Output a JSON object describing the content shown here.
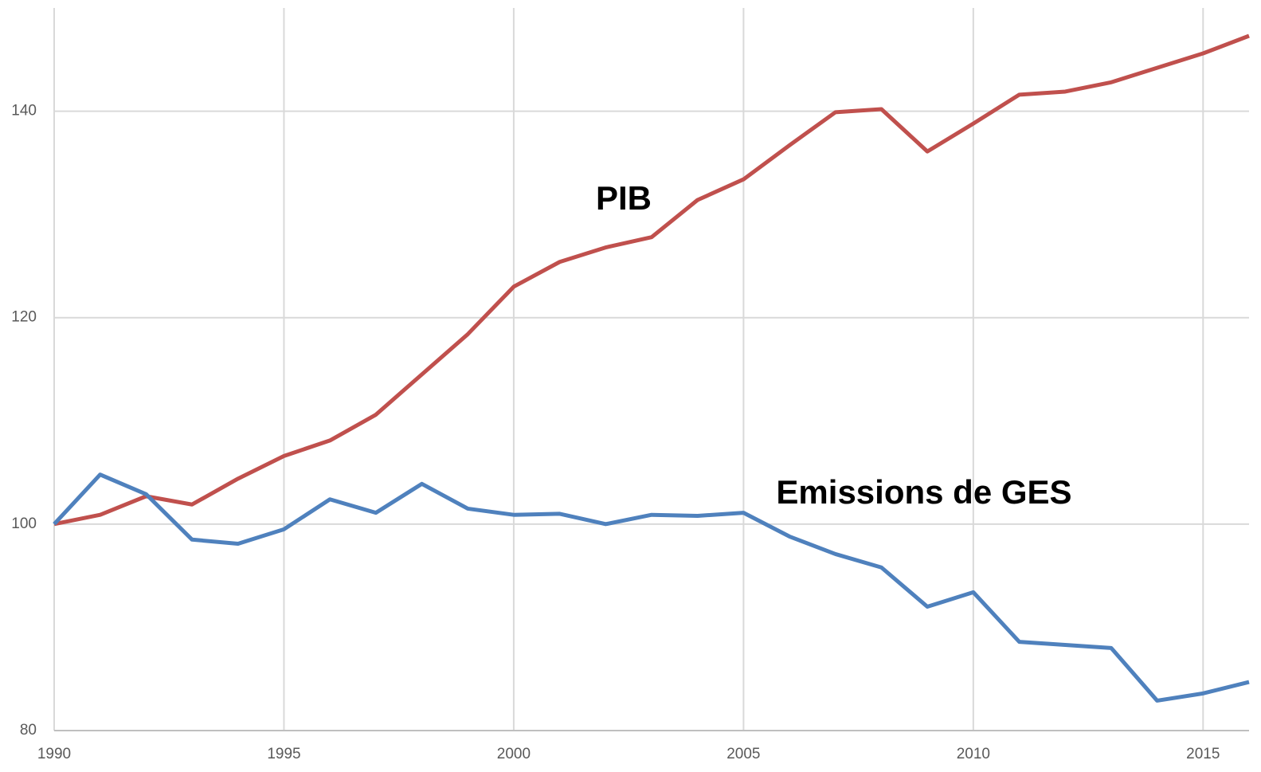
{
  "chart_data": {
    "type": "line",
    "x": [
      1990,
      1991,
      1992,
      1993,
      1994,
      1995,
      1996,
      1997,
      1998,
      1999,
      2000,
      2001,
      2002,
      2003,
      2004,
      2005,
      2006,
      2007,
      2008,
      2009,
      2010,
      2011,
      2012,
      2013,
      2014,
      2015,
      2016
    ],
    "series": [
      {
        "name": "PIB",
        "color": "#c0504d",
        "values": [
          100,
          100.9,
          102.7,
          101.9,
          104.4,
          106.6,
          108.1,
          110.6,
          114.5,
          118.4,
          123.0,
          125.4,
          126.8,
          127.8,
          131.4,
          133.4,
          136.7,
          139.9,
          140.2,
          136.1,
          138.8,
          141.6,
          141.9,
          142.8,
          144.2,
          145.6,
          147.3
        ]
      },
      {
        "name": "Emissions de GES",
        "color": "#4f81bd",
        "values": [
          100,
          104.8,
          102.9,
          98.5,
          98.1,
          99.5,
          102.4,
          101.1,
          103.9,
          101.5,
          100.9,
          101.0,
          100.0,
          100.9,
          100.8,
          101.1,
          98.8,
          97.1,
          95.8,
          92.0,
          93.4,
          88.6,
          88.3,
          88.0,
          82.9,
          83.6,
          84.7
        ]
      }
    ],
    "xlim": [
      1990,
      2016
    ],
    "xticks": [
      1990,
      1995,
      2000,
      2005,
      2010,
      2015
    ],
    "ylim": [
      80,
      150
    ],
    "yticks": [
      80,
      100,
      120,
      140
    ],
    "grid": true
  }
}
